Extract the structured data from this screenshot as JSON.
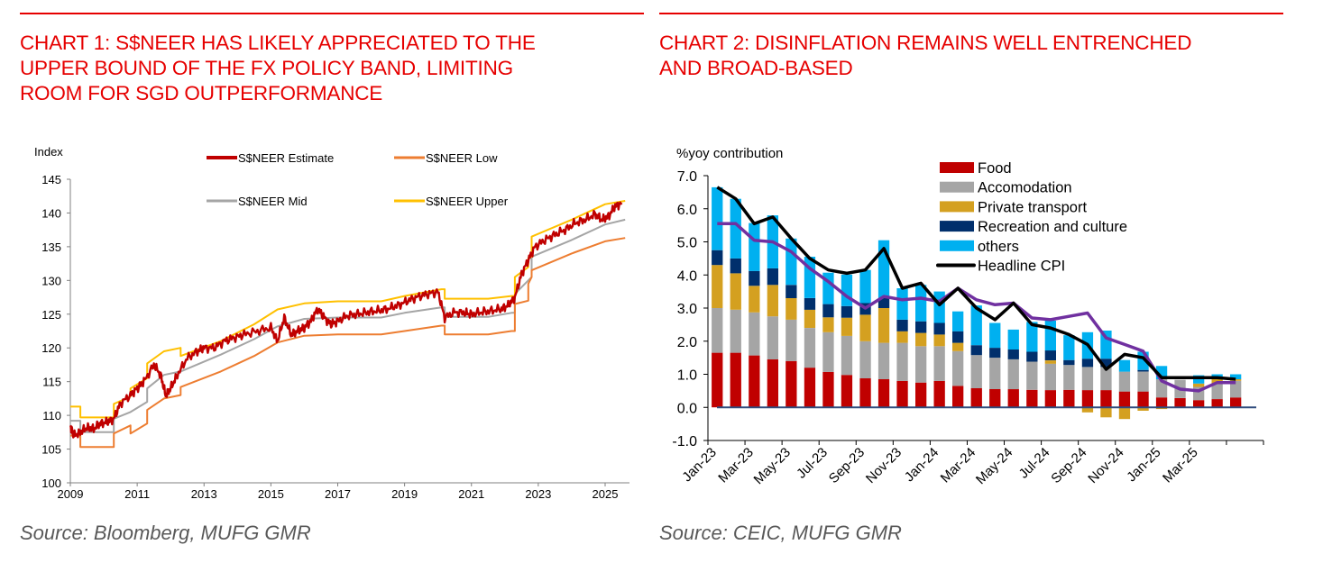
{
  "panels": [
    {
      "title_lines": [
        "CHART 1: S$NEER HAS LIKELY APPRECIATED TO THE",
        "UPPER BOUND OF THE FX POLICY BAND, LIMITING",
        "ROOM FOR SGD OUTPERFORMANCE"
      ],
      "source": "Source: Bloomberg, MUFG GMR"
    },
    {
      "title_lines": [
        "CHART 2: DISINFLATION REMAINS WELL ENTRENCHED",
        "AND BROAD-BASED"
      ],
      "source": "Source: CEIC, MUFG GMR"
    }
  ],
  "chart_data": [
    {
      "type": "line",
      "title": "CHART 1: S$NEER HAS LIKELY APPRECIATED TO THE UPPER BOUND OF THE FX POLICY BAND, LIMITING ROOM FOR SGD OUTPERFORMANCE",
      "ylabel": "Index",
      "xlabel": "",
      "ylim": [
        100,
        145
      ],
      "xlim": [
        2009,
        2025.6
      ],
      "yticks": [
        "100",
        "105",
        "110",
        "115",
        "120",
        "125",
        "130",
        "135",
        "140",
        "145"
      ],
      "xticks": [
        "2009",
        "2011",
        "2013",
        "2015",
        "2017",
        "2019",
        "2021",
        "2023",
        "2025"
      ],
      "grid": false,
      "legend_position": "top",
      "series": [
        {
          "name": "S$NEER Estimate",
          "color": "#c00000",
          "points": [
            [
              2009.0,
              108.5
            ],
            [
              2009.1,
              107.0
            ],
            [
              2009.3,
              107.5
            ],
            [
              2009.5,
              108.2
            ],
            [
              2009.7,
              108.0
            ],
            [
              2009.9,
              108.8
            ],
            [
              2010.1,
              109.0
            ],
            [
              2010.3,
              109.5
            ],
            [
              2010.5,
              111.8
            ],
            [
              2010.8,
              113.0
            ],
            [
              2011.0,
              114.0
            ],
            [
              2011.2,
              115.0
            ],
            [
              2011.5,
              117.5
            ],
            [
              2011.7,
              116.0
            ],
            [
              2011.85,
              113.0
            ],
            [
              2012.0,
              114.0
            ],
            [
              2012.2,
              116.0
            ],
            [
              2012.5,
              118.5
            ],
            [
              2012.8,
              119.5
            ],
            [
              2013.0,
              120.0
            ],
            [
              2013.3,
              120.0
            ],
            [
              2013.6,
              121.0
            ],
            [
              2013.9,
              121.5
            ],
            [
              2014.2,
              122.0
            ],
            [
              2014.6,
              122.5
            ],
            [
              2015.0,
              123.0
            ],
            [
              2015.2,
              121.0
            ],
            [
              2015.4,
              124.5
            ],
            [
              2015.6,
              122.0
            ],
            [
              2015.8,
              122.5
            ],
            [
              2016.0,
              123.0
            ],
            [
              2016.2,
              124.0
            ],
            [
              2016.4,
              125.8
            ],
            [
              2016.6,
              124.5
            ],
            [
              2016.8,
              123.5
            ],
            [
              2017.0,
              124.0
            ],
            [
              2017.3,
              124.8
            ],
            [
              2017.6,
              125.0
            ],
            [
              2017.9,
              125.3
            ],
            [
              2018.2,
              125.5
            ],
            [
              2018.5,
              125.8
            ],
            [
              2018.8,
              126.3
            ],
            [
              2019.1,
              127.0
            ],
            [
              2019.4,
              127.6
            ],
            [
              2019.7,
              128.0
            ],
            [
              2020.0,
              128.3
            ],
            [
              2020.2,
              124.5
            ],
            [
              2020.5,
              125.3
            ],
            [
              2020.8,
              125.2
            ],
            [
              2021.0,
              125.0
            ],
            [
              2021.3,
              125.3
            ],
            [
              2021.6,
              125.5
            ],
            [
              2021.9,
              125.8
            ],
            [
              2022.1,
              126.3
            ],
            [
              2022.3,
              127.5
            ],
            [
              2022.5,
              131.0
            ],
            [
              2022.7,
              133.0
            ],
            [
              2022.9,
              135.0
            ],
            [
              2023.2,
              136.0
            ],
            [
              2023.5,
              136.8
            ],
            [
              2023.8,
              137.5
            ],
            [
              2024.1,
              138.5
            ],
            [
              2024.4,
              139.0
            ],
            [
              2024.7,
              139.8
            ],
            [
              2024.9,
              139.0
            ],
            [
              2025.1,
              139.5
            ],
            [
              2025.3,
              141.0
            ],
            [
              2025.5,
              141.5
            ]
          ]
        },
        {
          "name": "S$NEER Low",
          "color": "#ed7d31",
          "points": [
            [
              2009.0,
              107.0
            ],
            [
              2009.3,
              107.0
            ],
            [
              2009.3,
              105.3
            ],
            [
              2010.3,
              105.3
            ],
            [
              2010.3,
              107.3
            ],
            [
              2010.8,
              108.5
            ],
            [
              2010.8,
              107.3
            ],
            [
              2011.3,
              108.8
            ],
            [
              2011.3,
              110.8
            ],
            [
              2011.8,
              112.5
            ],
            [
              2012.3,
              113.0
            ],
            [
              2012.3,
              114.2
            ],
            [
              2013.5,
              116.5
            ],
            [
              2014.5,
              118.8
            ],
            [
              2015.2,
              120.8
            ],
            [
              2016.0,
              121.8
            ],
            [
              2017.0,
              122.0
            ],
            [
              2018.3,
              122.0
            ],
            [
              2019.0,
              122.5
            ],
            [
              2020.1,
              123.3
            ],
            [
              2020.2,
              123.3
            ],
            [
              2020.2,
              122.0
            ],
            [
              2021.5,
              122.0
            ],
            [
              2022.2,
              122.5
            ],
            [
              2022.3,
              122.5
            ],
            [
              2022.3,
              126.5
            ],
            [
              2022.7,
              127.0
            ],
            [
              2022.7,
              129.5
            ],
            [
              2022.8,
              130.5
            ],
            [
              2022.8,
              131.5
            ],
            [
              2024.0,
              134.0
            ],
            [
              2025.0,
              135.8
            ],
            [
              2025.6,
              136.3
            ]
          ]
        },
        {
          "name": "S$NEER Mid",
          "color": "#a5a5a5",
          "points": [
            [
              2009.0,
              109.2
            ],
            [
              2009.3,
              109.2
            ],
            [
              2009.3,
              107.5
            ],
            [
              2010.3,
              107.5
            ],
            [
              2010.3,
              109.5
            ],
            [
              2010.8,
              110.5
            ],
            [
              2011.3,
              112.0
            ],
            [
              2011.3,
              114.0
            ],
            [
              2011.8,
              116.0
            ],
            [
              2012.3,
              116.5
            ],
            [
              2013.5,
              119.0
            ],
            [
              2014.5,
              121.3
            ],
            [
              2015.2,
              123.2
            ],
            [
              2016.0,
              124.3
            ],
            [
              2017.0,
              124.5
            ],
            [
              2018.3,
              124.5
            ],
            [
              2019.0,
              125.2
            ],
            [
              2020.1,
              126.0
            ],
            [
              2020.2,
              126.0
            ],
            [
              2020.2,
              124.6
            ],
            [
              2021.5,
              124.6
            ],
            [
              2022.2,
              125.2
            ],
            [
              2022.3,
              125.2
            ],
            [
              2022.3,
              128.0
            ],
            [
              2022.7,
              130.0
            ],
            [
              2022.8,
              130.5
            ],
            [
              2022.8,
              133.5
            ],
            [
              2024.0,
              136.0
            ],
            [
              2025.0,
              138.3
            ],
            [
              2025.6,
              139.0
            ]
          ]
        },
        {
          "name": "S$NEER Upper",
          "color": "#ffc000",
          "points": [
            [
              2009.0,
              111.3
            ],
            [
              2009.3,
              111.3
            ],
            [
              2009.3,
              109.7
            ],
            [
              2010.3,
              109.7
            ],
            [
              2010.3,
              111.7
            ],
            [
              2010.8,
              112.8
            ],
            [
              2010.8,
              114.0
            ],
            [
              2011.3,
              115.5
            ],
            [
              2011.3,
              117.7
            ],
            [
              2011.8,
              119.5
            ],
            [
              2012.3,
              120.0
            ],
            [
              2012.3,
              118.8
            ],
            [
              2013.5,
              121.0
            ],
            [
              2014.5,
              123.5
            ],
            [
              2015.2,
              125.7
            ],
            [
              2016.0,
              126.6
            ],
            [
              2017.0,
              126.9
            ],
            [
              2018.3,
              126.9
            ],
            [
              2019.0,
              127.7
            ],
            [
              2020.1,
              128.7
            ],
            [
              2020.2,
              128.7
            ],
            [
              2020.2,
              127.3
            ],
            [
              2021.5,
              127.3
            ],
            [
              2022.2,
              127.7
            ],
            [
              2022.3,
              127.7
            ],
            [
              2022.3,
              130.5
            ],
            [
              2022.7,
              132.0
            ],
            [
              2022.7,
              133.3
            ],
            [
              2022.8,
              133.5
            ],
            [
              2022.8,
              136.5
            ],
            [
              2024.0,
              139.0
            ],
            [
              2025.0,
              141.3
            ],
            [
              2025.6,
              141.8
            ]
          ]
        }
      ]
    },
    {
      "type": "bar",
      "stacked": true,
      "title": "CHART 2: DISINFLATION REMAINS WELL ENTRENCHED AND BROAD-BASED",
      "ylabel": "%yoy contribution",
      "xlabel": "",
      "ylim": [
        -1.0,
        7.0
      ],
      "yticks": [
        "-1.0",
        "0.0",
        "1.0",
        "2.0",
        "3.0",
        "4.0",
        "5.0",
        "6.0",
        "7.0"
      ],
      "xtick_labels": [
        "Jan-23",
        "Mar-23",
        "May-23",
        "Jul-23",
        "Sep-23",
        "Nov-23",
        "Jan-24",
        "Mar-24",
        "May-24",
        "Jul-24",
        "Sep-24",
        "Nov-24",
        "Jan-25",
        "Mar-25"
      ],
      "grid": false,
      "legend_position": "top-right",
      "categories": [
        "Jan-23",
        "Feb-23",
        "Mar-23",
        "Apr-23",
        "May-23",
        "Jun-23",
        "Jul-23",
        "Aug-23",
        "Sep-23",
        "Oct-23",
        "Nov-23",
        "Dec-23",
        "Jan-24",
        "Feb-24",
        "Mar-24",
        "Apr-24",
        "May-24",
        "Jun-24",
        "Jul-24",
        "Aug-24",
        "Sep-24",
        "Oct-24",
        "Nov-24",
        "Dec-24",
        "Jan-25",
        "Feb-25",
        "Mar-25",
        "Apr-25",
        "May-25"
      ],
      "series": [
        {
          "name": "Food",
          "color": "#c00000",
          "values": [
            1.65,
            1.65,
            1.57,
            1.45,
            1.4,
            1.2,
            1.07,
            0.98,
            0.88,
            0.85,
            0.8,
            0.75,
            0.8,
            0.65,
            0.58,
            0.55,
            0.55,
            0.53,
            0.52,
            0.53,
            0.52,
            0.52,
            0.48,
            0.48,
            0.3,
            0.28,
            0.22,
            0.25,
            0.3
          ]
        },
        {
          "name": "Accomodation",
          "color": "#a5a5a5",
          "values": [
            1.35,
            1.3,
            1.3,
            1.3,
            1.25,
            1.2,
            1.2,
            1.18,
            1.12,
            1.1,
            1.15,
            1.1,
            1.05,
            1.05,
            1.0,
            0.95,
            0.9,
            0.85,
            0.8,
            0.75,
            0.7,
            0.7,
            0.6,
            0.6,
            0.55,
            0.55,
            0.4,
            0.45,
            0.5
          ]
        },
        {
          "name": "Private transport",
          "color": "#d4a020",
          "values": [
            1.3,
            1.1,
            0.8,
            0.95,
            0.65,
            0.55,
            0.45,
            0.55,
            0.8,
            1.05,
            0.35,
            0.4,
            0.35,
            0.25,
            0.0,
            0.0,
            0.0,
            0.0,
            0.1,
            0.0,
            -0.15,
            -0.3,
            -0.35,
            -0.1,
            -0.05,
            0.0,
            0.1,
            0.2,
            0.05
          ]
        },
        {
          "name": "Recreation and culture",
          "color": "#002f6c",
          "values": [
            0.45,
            0.45,
            0.45,
            0.5,
            0.4,
            0.35,
            0.4,
            0.35,
            0.35,
            0.3,
            0.35,
            0.35,
            0.35,
            0.35,
            0.3,
            0.3,
            0.3,
            0.3,
            0.3,
            0.15,
            0.25,
            0.25,
            0.0,
            0.05,
            0.0,
            0.0,
            0.0,
            0.0,
            0.0
          ]
        },
        {
          "name": "others",
          "color": "#00b0f0",
          "values": [
            1.9,
            1.8,
            1.45,
            1.6,
            1.4,
            1.25,
            0.95,
            0.95,
            1.0,
            1.75,
            0.95,
            1.1,
            0.95,
            0.6,
            1.2,
            0.75,
            0.6,
            0.9,
            0.9,
            0.75,
            0.8,
            0.85,
            0.35,
            0.55,
            0.4,
            0.0,
            0.25,
            0.1,
            0.15
          ]
        },
        {
          "name": "Headline CPI",
          "color": "#000000",
          "type": "line",
          "values": [
            6.65,
            6.3,
            5.55,
            5.75,
            5.1,
            4.5,
            4.15,
            4.05,
            4.15,
            4.8,
            3.6,
            3.75,
            3.1,
            3.6,
            3.0,
            2.65,
            3.15,
            2.5,
            2.4,
            2.2,
            1.9,
            1.15,
            1.6,
            1.5,
            0.9,
            0.9,
            0.9,
            0.9,
            0.85
          ]
        },
        {
          "name": "",
          "color": "#7030a0",
          "type": "line",
          "values": [
            5.55,
            5.55,
            5.05,
            5.0,
            4.7,
            4.2,
            3.8,
            3.35,
            3.0,
            3.35,
            3.25,
            3.3,
            3.2,
            3.6,
            3.25,
            3.1,
            3.15,
            2.7,
            2.65,
            2.75,
            2.85,
            2.1,
            1.9,
            1.7,
            0.8,
            0.55,
            0.5,
            0.75,
            0.75
          ]
        }
      ]
    }
  ]
}
